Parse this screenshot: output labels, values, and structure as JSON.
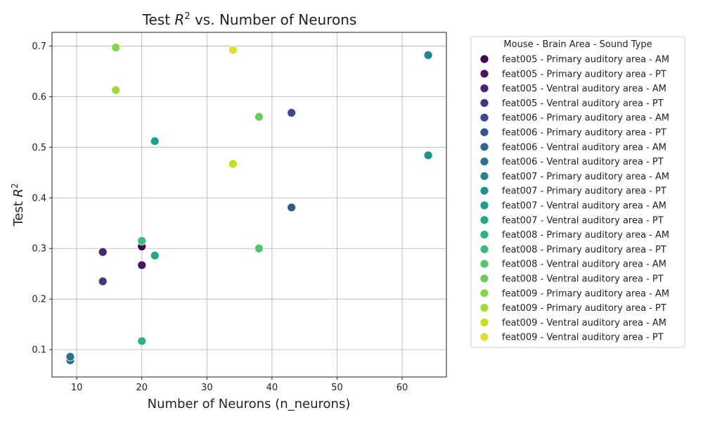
{
  "chart_data": {
    "type": "scatter",
    "title": "Test R² vs. Number of Neurons",
    "xlabel": "Number of Neurons (n_neurons)",
    "ylabel": "Test R²",
    "xlim": [
      6.2,
      66.8
    ],
    "ylim": [
      0.046,
      0.727
    ],
    "x_ticks": [
      10,
      20,
      30,
      40,
      50,
      60
    ],
    "y_ticks": [
      0.1,
      0.2,
      0.3,
      0.4,
      0.5,
      0.6,
      0.7
    ],
    "grid": true,
    "legend_title": "Mouse - Brain Area - Sound Type",
    "legend_position": "outside right",
    "series": [
      {
        "name": "feat005 - Primary auditory area - AM",
        "color": "#440154",
        "points": [
          [
            20,
            0.304
          ]
        ]
      },
      {
        "name": "feat005 - Primary auditory area - PT",
        "color": "#471365",
        "points": [
          [
            20,
            0.267
          ]
        ]
      },
      {
        "name": "feat005 - Ventral auditory area - AM",
        "color": "#482475",
        "points": [
          [
            14,
            0.293
          ]
        ]
      },
      {
        "name": "feat005 - Ventral auditory area - PT",
        "color": "#453781",
        "points": [
          [
            14,
            0.235
          ]
        ]
      },
      {
        "name": "feat006 - Primary auditory area - AM",
        "color": "#3f4889",
        "points": [
          [
            43,
            0.568
          ]
        ]
      },
      {
        "name": "feat006 - Primary auditory area - PT",
        "color": "#39568c",
        "points": [
          [
            43,
            0.381
          ]
        ]
      },
      {
        "name": "feat006 - Ventral auditory area - AM",
        "color": "#31668e",
        "points": [
          [
            9,
            0.079
          ]
        ]
      },
      {
        "name": "feat006 - Ventral auditory area - PT",
        "color": "#2c728e",
        "points": [
          [
            9,
            0.086
          ]
        ]
      },
      {
        "name": "feat007 - Primary auditory area - AM",
        "color": "#26828e",
        "points": [
          [
            64,
            0.682
          ]
        ]
      },
      {
        "name": "feat007 - Primary auditory area - PT",
        "color": "#21918c",
        "points": [
          [
            64,
            0.484
          ]
        ]
      },
      {
        "name": "feat007 - Ventral auditory area - AM",
        "color": "#1f9e89",
        "points": [
          [
            22,
            0.512
          ]
        ]
      },
      {
        "name": "feat007 - Ventral auditory area - PT",
        "color": "#22a884",
        "points": [
          [
            22,
            0.286
          ]
        ]
      },
      {
        "name": "feat008 - Primary auditory area - AM",
        "color": "#2db27d",
        "points": [
          [
            20,
            0.117
          ]
        ]
      },
      {
        "name": "feat008 - Primary auditory area - PT",
        "color": "#3bbb75",
        "points": [
          [
            20,
            0.315
          ]
        ]
      },
      {
        "name": "feat008 - Ventral auditory area - AM",
        "color": "#51c56a",
        "points": [
          [
            38,
            0.3
          ]
        ]
      },
      {
        "name": "feat008 - Ventral auditory area - PT",
        "color": "#69cd5b",
        "points": [
          [
            38,
            0.56
          ]
        ]
      },
      {
        "name": "feat009 - Primary auditory area - AM",
        "color": "#85d54a",
        "points": [
          [
            16,
            0.697
          ]
        ]
      },
      {
        "name": "feat009 - Primary auditory area - PT",
        "color": "#a2da37",
        "points": [
          [
            16,
            0.613
          ]
        ]
      },
      {
        "name": "feat009 - Ventral auditory area - AM",
        "color": "#c2df23",
        "points": [
          [
            34,
            0.467
          ]
        ]
      },
      {
        "name": "feat009 - Ventral auditory area - PT",
        "color": "#e1dd37",
        "points": [
          [
            34,
            0.692
          ]
        ]
      }
    ]
  }
}
